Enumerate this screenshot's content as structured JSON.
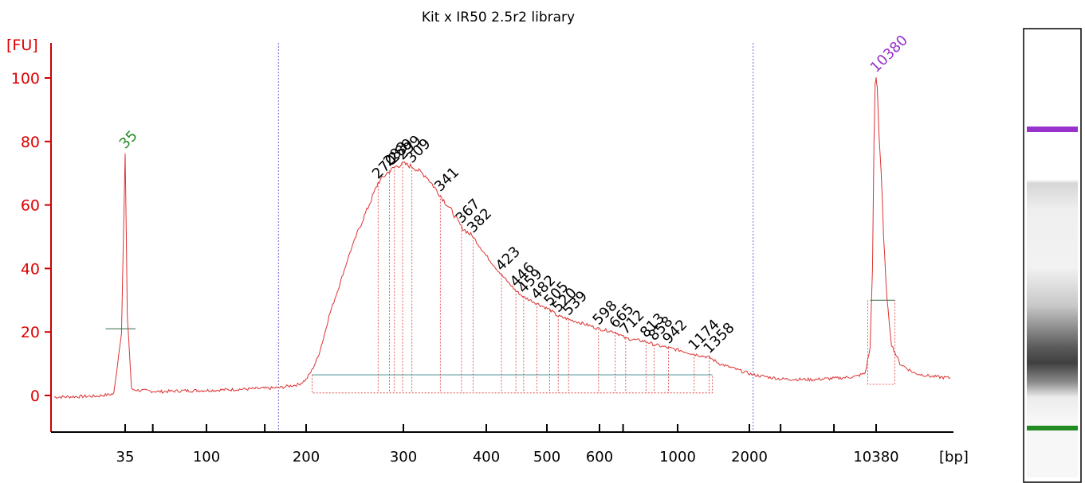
{
  "chart_data": {
    "type": "line",
    "title": "Kit x IR50 2.5r2 library",
    "ylabel": "[FU]",
    "xlabel": "[bp]",
    "ylim": [
      -10,
      110
    ],
    "yticks": [
      0,
      20,
      40,
      60,
      80,
      100
    ],
    "xticks": [
      "35",
      "100",
      "200",
      "300",
      "400",
      "500",
      "600",
      "1000",
      "2000",
      "10380"
    ],
    "grid": false,
    "colors": {
      "trace": "#dd3333",
      "axis": "#cc0000",
      "lower_marker": "#228b22",
      "upper_marker": "#9932cc",
      "baseline": "#5f9ea0",
      "region": "#6b6bd6"
    },
    "markers": [
      {
        "name": "lower",
        "label": "35",
        "size_bp": 35,
        "height_fu": 76
      },
      {
        "name": "upper",
        "label": "10380",
        "size_bp": 10380,
        "height_fu": 100
      }
    ],
    "peak_labels": [
      {
        "label": "270",
        "size_bp": 270,
        "height_fu": 67
      },
      {
        "label": "283",
        "size_bp": 283,
        "height_fu": 71
      },
      {
        "label": "289",
        "size_bp": 289,
        "height_fu": 72
      },
      {
        "label": "299",
        "size_bp": 299,
        "height_fu": 73
      },
      {
        "label": "309",
        "size_bp": 309,
        "height_fu": 72
      },
      {
        "label": "341",
        "size_bp": 341,
        "height_fu": 63
      },
      {
        "label": "367",
        "size_bp": 367,
        "height_fu": 53
      },
      {
        "label": "382",
        "size_bp": 382,
        "height_fu": 50
      },
      {
        "label": "423",
        "size_bp": 423,
        "height_fu": 38
      },
      {
        "label": "446",
        "size_bp": 446,
        "height_fu": 33
      },
      {
        "label": "459",
        "size_bp": 459,
        "height_fu": 31
      },
      {
        "label": "482",
        "size_bp": 482,
        "height_fu": 29
      },
      {
        "label": "505",
        "size_bp": 505,
        "height_fu": 27
      },
      {
        "label": "520",
        "size_bp": 520,
        "height_fu": 25
      },
      {
        "label": "539",
        "size_bp": 539,
        "height_fu": 24
      },
      {
        "label": "598",
        "size_bp": 598,
        "height_fu": 21
      },
      {
        "label": "665",
        "size_bp": 665,
        "height_fu": 20
      },
      {
        "label": "712",
        "size_bp": 712,
        "height_fu": 18
      },
      {
        "label": "813",
        "size_bp": 813,
        "height_fu": 17
      },
      {
        "label": "858",
        "size_bp": 858,
        "height_fu": 16
      },
      {
        "label": "942",
        "size_bp": 942,
        "height_fu": 15
      },
      {
        "label": "1174",
        "size_bp": 1174,
        "height_fu": 13
      },
      {
        "label": "1358",
        "size_bp": 1358,
        "height_fu": 12
      }
    ],
    "region_bp": [
      165,
      2100
    ],
    "trace": [
      [
        20,
        -0.5
      ],
      [
        28,
        -0.2
      ],
      [
        32,
        0.5
      ],
      [
        34,
        20
      ],
      [
        35,
        76
      ],
      [
        36,
        25
      ],
      [
        38,
        2
      ],
      [
        42,
        1.6
      ],
      [
        55,
        1.2
      ],
      [
        75,
        1.5
      ],
      [
        100,
        1.6
      ],
      [
        130,
        2.0
      ],
      [
        165,
        2.4
      ],
      [
        190,
        3.5
      ],
      [
        200,
        5
      ],
      [
        205,
        8
      ],
      [
        210,
        12
      ],
      [
        215,
        18
      ],
      [
        220,
        25
      ],
      [
        230,
        35
      ],
      [
        240,
        45
      ],
      [
        250,
        53
      ],
      [
        260,
        60
      ],
      [
        270,
        67
      ],
      [
        280,
        70
      ],
      [
        290,
        72
      ],
      [
        300,
        73
      ],
      [
        310,
        72
      ],
      [
        325,
        69
      ],
      [
        341,
        63
      ],
      [
        355,
        58
      ],
      [
        367,
        53
      ],
      [
        382,
        50
      ],
      [
        400,
        44
      ],
      [
        423,
        38
      ],
      [
        446,
        33
      ],
      [
        459,
        31
      ],
      [
        482,
        29
      ],
      [
        505,
        27
      ],
      [
        520,
        25
      ],
      [
        539,
        24
      ],
      [
        570,
        22.5
      ],
      [
        598,
        21
      ],
      [
        630,
        20.5
      ],
      [
        665,
        20
      ],
      [
        712,
        18
      ],
      [
        760,
        17.5
      ],
      [
        813,
        17
      ],
      [
        858,
        16
      ],
      [
        942,
        15
      ],
      [
        1050,
        14
      ],
      [
        1174,
        13
      ],
      [
        1358,
        12
      ],
      [
        1500,
        10
      ],
      [
        1800,
        8
      ],
      [
        2100,
        6.5
      ],
      [
        3000,
        5.2
      ],
      [
        4500,
        5
      ],
      [
        6500,
        5.5
      ],
      [
        8000,
        6
      ],
      [
        9000,
        7
      ],
      [
        9600,
        15
      ],
      [
        9900,
        40
      ],
      [
        10100,
        80
      ],
      [
        10250,
        98
      ],
      [
        10380,
        100
      ],
      [
        10480,
        97
      ],
      [
        10600,
        83
      ],
      [
        10800,
        70
      ],
      [
        11000,
        50
      ],
      [
        11300,
        30
      ],
      [
        11700,
        16
      ],
      [
        12500,
        10
      ],
      [
        14000,
        7
      ],
      [
        16000,
        6
      ],
      [
        18500,
        5.5
      ]
    ]
  }
}
